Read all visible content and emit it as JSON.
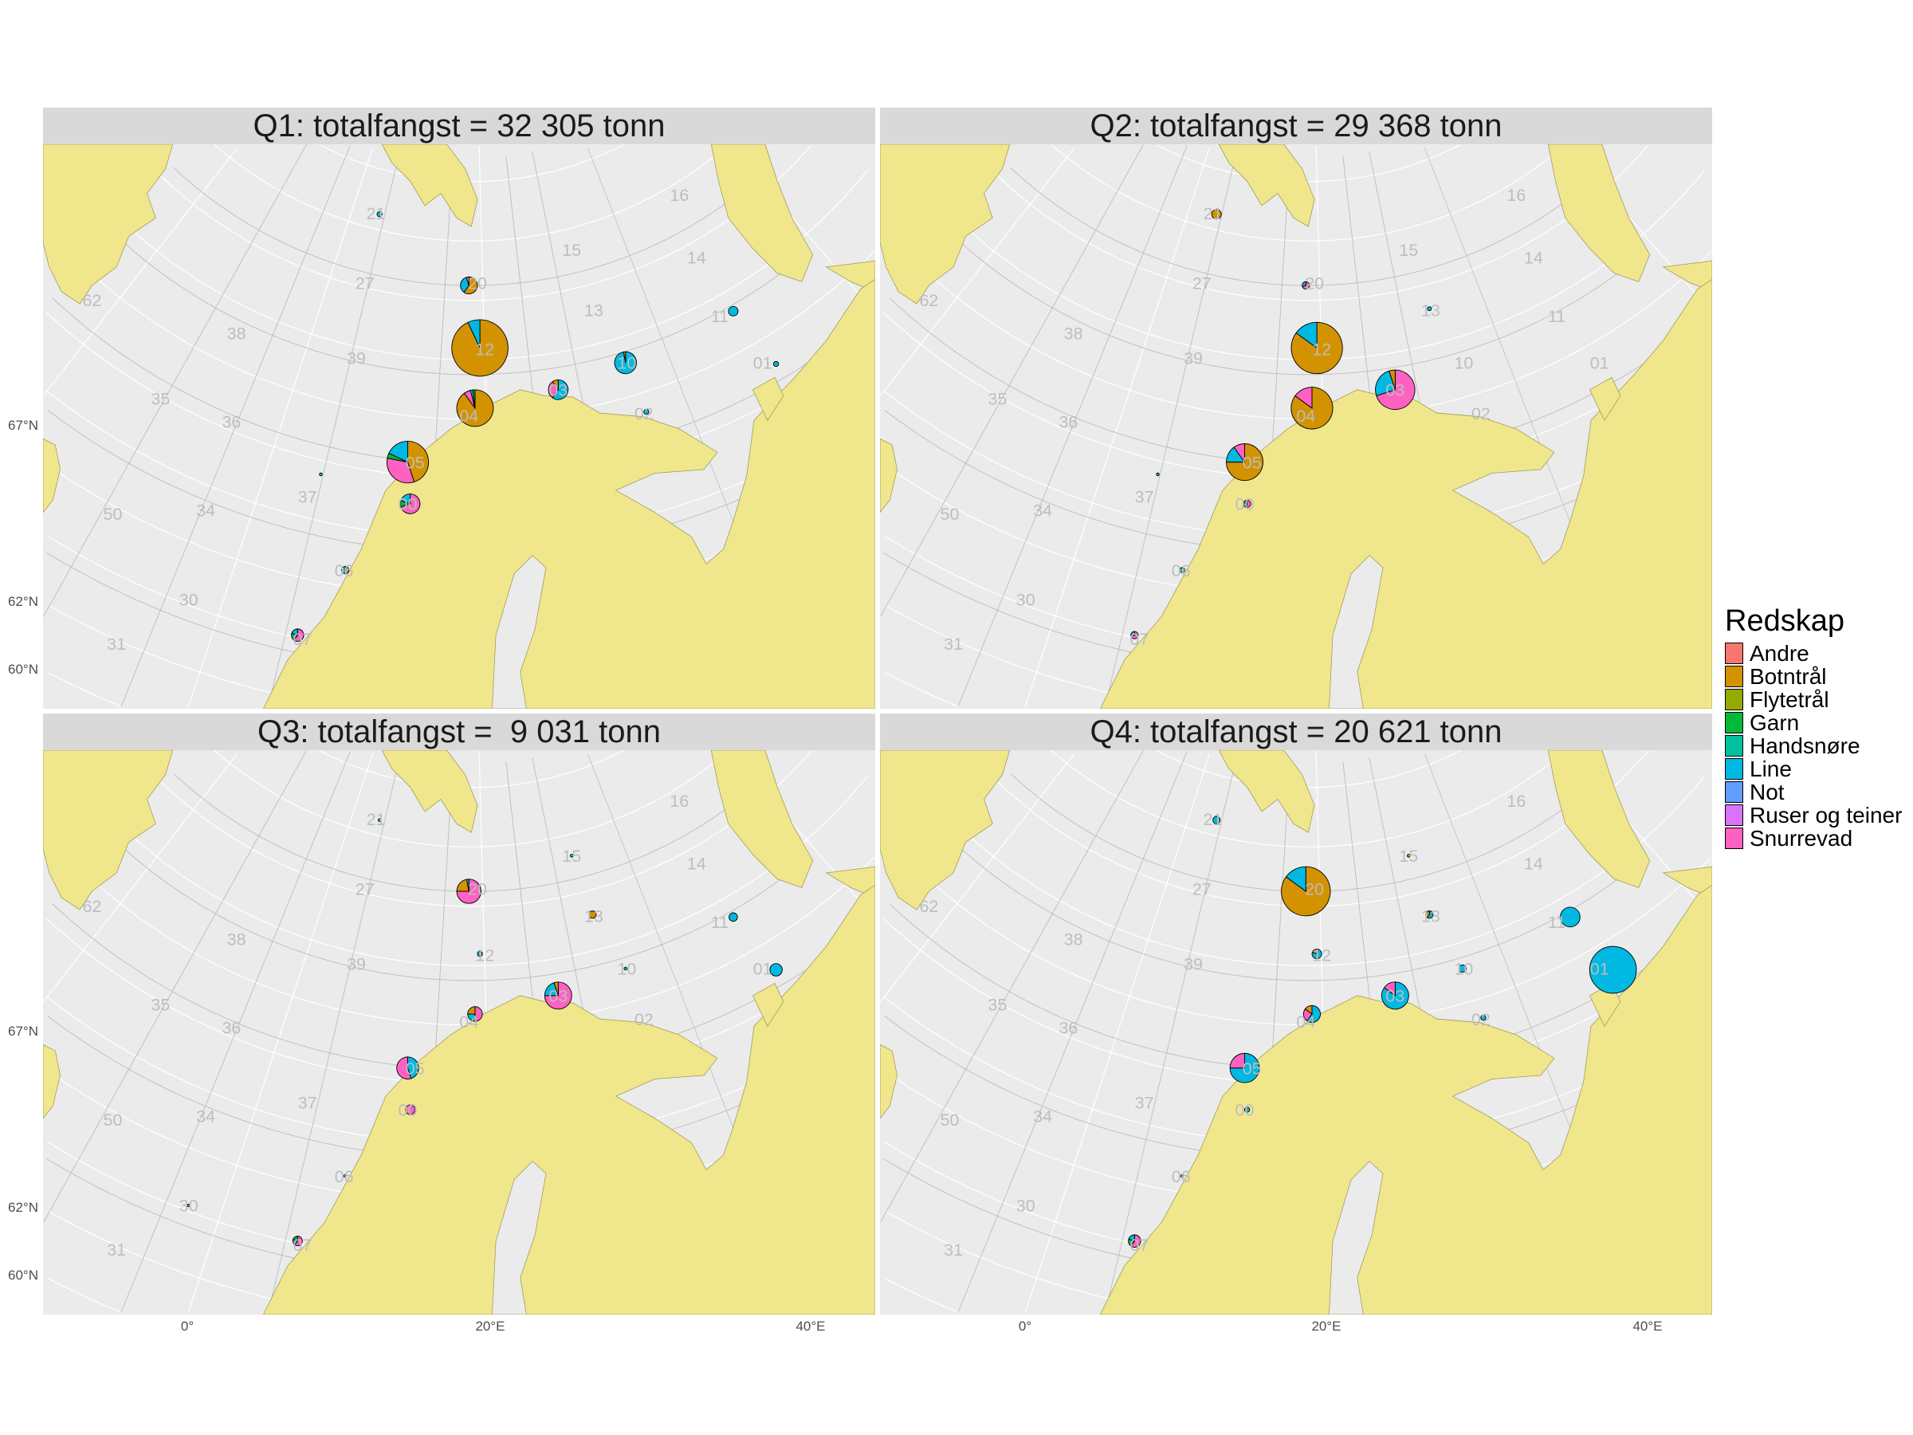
{
  "chart_data": {
    "type": "pie",
    "legend": {
      "title": "Redskap",
      "position": "right",
      "items": [
        {
          "label": "Andre",
          "color": "#F8766D"
        },
        {
          "label": "Botntrål",
          "color": "#D39200"
        },
        {
          "label": "Flytetrål",
          "color": "#93AA00"
        },
        {
          "label": "Garn",
          "color": "#00BA38"
        },
        {
          "label": "Handsnøre",
          "color": "#00C19F"
        },
        {
          "label": "Line",
          "color": "#00B9E3"
        },
        {
          "label": "Not",
          "color": "#619CFF"
        },
        {
          "label": "Ruser og teiner",
          "color": "#DB72FB"
        },
        {
          "label": "Snurrevad",
          "color": "#FF61C3"
        }
      ]
    },
    "colors": {
      "land": "#F0E68C",
      "sea": "#EBEBEB",
      "strip": "#D9D9D9",
      "area_label": "#BDBDBD"
    },
    "y_ticks": [
      "67°N",
      "62°N",
      "60°N"
    ],
    "x_ticks": [
      "0°",
      "20°E",
      "40°E"
    ],
    "area_codes": [
      "16",
      "15",
      "14",
      "21",
      "27",
      "20",
      "13",
      "11",
      "62",
      "38",
      "39",
      "12",
      "10",
      "01",
      "35",
      "36",
      "04",
      "03",
      "02",
      "05",
      "37",
      "50",
      "34",
      "00",
      "06",
      "30",
      "31",
      "07"
    ],
    "panels": [
      {
        "title": "Q1: totalfangst = 32 305 tonn",
        "pies": [
          {
            "area": "21",
            "relative_size": 0.09,
            "shares": {
              "Line": 1
            }
          },
          {
            "area": "20",
            "relative_size": 0.3,
            "shares": {
              "Botntrål": 0.6,
              "Line": 0.35,
              "Snurrevad": 0.05
            }
          },
          {
            "area": "12",
            "relative_size": 1.0,
            "shares": {
              "Botntrål": 0.93,
              "Line": 0.07
            }
          },
          {
            "area": "04",
            "relative_size": 0.65,
            "shares": {
              "Botntrål": 0.9,
              "Snurrevad": 0.06,
              "Line": 0.02,
              "Garn": 0.02
            }
          },
          {
            "area": "03",
            "relative_size": 0.35,
            "shares": {
              "Line": 0.6,
              "Snurrevad": 0.3,
              "Botntrål": 0.1
            }
          },
          {
            "area": "10",
            "relative_size": 0.39,
            "shares": {
              "Line": 0.97,
              "Botntrål": 0.03
            }
          },
          {
            "area": "11",
            "relative_size": 0.17,
            "shares": {
              "Line": 1
            }
          },
          {
            "area": "01",
            "relative_size": 0.09,
            "shares": {
              "Line": 1
            }
          },
          {
            "area": "02",
            "relative_size": 0.09,
            "shares": {
              "Line": 1
            }
          },
          {
            "area": "05",
            "relative_size": 0.74,
            "shares": {
              "Botntrål": 0.45,
              "Snurrevad": 0.33,
              "Garn": 0.04,
              "Line": 0.18
            }
          },
          {
            "area": "00",
            "relative_size": 0.35,
            "shares": {
              "Snurrevad": 0.7,
              "Garn": 0.1,
              "Line": 0.2
            }
          },
          {
            "area": "06",
            "relative_size": 0.13,
            "shares": {
              "Botntrål": 0.5,
              "Line": 0.5
            }
          },
          {
            "area": "07",
            "relative_size": 0.22,
            "shares": {
              "Snurrevad": 0.6,
              "Garn": 0.2,
              "Line": 0.2
            }
          },
          {
            "area": "37",
            "relative_size": 0.05,
            "shares": {
              "Line": 1
            }
          }
        ]
      },
      {
        "title": "Q2: totalfangst = 29 368 tonn",
        "pies": [
          {
            "area": "21",
            "relative_size": 0.17,
            "shares": {
              "Botntrål": 1
            }
          },
          {
            "area": "20",
            "relative_size": 0.13,
            "shares": {
              "Snurrevad": 0.7,
              "Line": 0.3
            }
          },
          {
            "area": "13",
            "relative_size": 0.07,
            "shares": {
              "Line": 1
            }
          },
          {
            "area": "12",
            "relative_size": 0.91,
            "shares": {
              "Botntrål": 0.85,
              "Line": 0.15
            }
          },
          {
            "area": "04",
            "relative_size": 0.74,
            "shares": {
              "Botntrål": 0.85,
              "Snurrevad": 0.15
            }
          },
          {
            "area": "03",
            "relative_size": 0.7,
            "shares": {
              "Snurrevad": 0.7,
              "Line": 0.25,
              "Botntrål": 0.05
            }
          },
          {
            "area": "05",
            "relative_size": 0.65,
            "shares": {
              "Botntrål": 0.75,
              "Line": 0.15,
              "Snurrevad": 0.1
            }
          },
          {
            "area": "00",
            "relative_size": 0.13,
            "shares": {
              "Snurrevad": 0.5,
              "Line": 0.3,
              "Garn": 0.2
            }
          },
          {
            "area": "06",
            "relative_size": 0.09,
            "shares": {
              "Line": 0.5,
              "Handsnøre": 0.5
            }
          },
          {
            "area": "07",
            "relative_size": 0.13,
            "shares": {
              "Snurrevad": 0.7,
              "Line": 0.3
            }
          },
          {
            "area": "37",
            "relative_size": 0.05,
            "shares": {
              "Line": 1
            }
          }
        ]
      },
      {
        "title": "Q3: totalfangst =  9 031 tonn",
        "pies": [
          {
            "area": "21",
            "relative_size": 0.05,
            "shares": {
              "Line": 1
            }
          },
          {
            "area": "20",
            "relative_size": 0.43,
            "shares": {
              "Snurrevad": 0.75,
              "Botntrål": 0.22,
              "Line": 0.03
            }
          },
          {
            "area": "15",
            "relative_size": 0.05,
            "shares": {
              "Line": 1
            }
          },
          {
            "area": "13",
            "relative_size": 0.13,
            "shares": {
              "Botntrål": 1
            }
          },
          {
            "area": "11",
            "relative_size": 0.15,
            "shares": {
              "Line": 1
            }
          },
          {
            "area": "12",
            "relative_size": 0.09,
            "shares": {
              "Line": 1
            }
          },
          {
            "area": "10",
            "relative_size": 0.05,
            "shares": {
              "Line": 1
            }
          },
          {
            "area": "01",
            "relative_size": 0.22,
            "shares": {
              "Line": 1
            }
          },
          {
            "area": "03",
            "relative_size": 0.48,
            "shares": {
              "Snurrevad": 0.75,
              "Line": 0.2,
              "Botntrål": 0.05
            }
          },
          {
            "area": "04",
            "relative_size": 0.26,
            "shares": {
              "Snurrevad": 0.5,
              "Line": 0.25,
              "Botntrål": 0.25
            }
          },
          {
            "area": "05",
            "relative_size": 0.39,
            "shares": {
              "Line": 0.45,
              "Snurrevad": 0.55
            }
          },
          {
            "area": "00",
            "relative_size": 0.17,
            "shares": {
              "Snurrevad": 1
            }
          },
          {
            "area": "06",
            "relative_size": 0.05,
            "shares": {
              "Line": 1
            }
          },
          {
            "area": "30",
            "relative_size": 0.04,
            "shares": {
              "Line": 1
            }
          },
          {
            "area": "07",
            "relative_size": 0.17,
            "shares": {
              "Snurrevad": 0.6,
              "Line": 0.2,
              "Garn": 0.2
            }
          }
        ]
      },
      {
        "title": "Q4: totalfangst = 20 621 tonn",
        "pies": [
          {
            "area": "21",
            "relative_size": 0.13,
            "shares": {
              "Line": 1
            }
          },
          {
            "area": "15",
            "relative_size": 0.05,
            "shares": {
              "Botntrål": 1
            }
          },
          {
            "area": "20",
            "relative_size": 0.87,
            "shares": {
              "Botntrål": 0.85,
              "Line": 0.15
            }
          },
          {
            "area": "13",
            "relative_size": 0.13,
            "shares": {
              "Line": 0.6,
              "Botntrål": 0.4
            }
          },
          {
            "area": "11",
            "relative_size": 0.35,
            "shares": {
              "Line": 1
            }
          },
          {
            "area": "12",
            "relative_size": 0.17,
            "shares": {
              "Line": 0.8,
              "Botntrål": 0.2
            }
          },
          {
            "area": "10",
            "relative_size": 0.13,
            "shares": {
              "Line": 1
            }
          },
          {
            "area": "01",
            "relative_size": 0.83,
            "shares": {
              "Line": 1
            }
          },
          {
            "area": "03",
            "relative_size": 0.48,
            "shares": {
              "Line": 0.85,
              "Snurrevad": 0.15
            }
          },
          {
            "area": "02",
            "relative_size": 0.09,
            "shares": {
              "Line": 1
            }
          },
          {
            "area": "04",
            "relative_size": 0.3,
            "shares": {
              "Line": 0.6,
              "Snurrevad": 0.25,
              "Botntrål": 0.15
            }
          },
          {
            "area": "05",
            "relative_size": 0.52,
            "shares": {
              "Line": 0.75,
              "Snurrevad": 0.25
            }
          },
          {
            "area": "00",
            "relative_size": 0.09,
            "shares": {
              "Line": 1
            }
          },
          {
            "area": "06",
            "relative_size": 0.05,
            "shares": {
              "Line": 1
            }
          },
          {
            "area": "07",
            "relative_size": 0.22,
            "shares": {
              "Snurrevad": 0.6,
              "Garn": 0.2,
              "Line": 0.2
            }
          }
        ]
      }
    ]
  }
}
